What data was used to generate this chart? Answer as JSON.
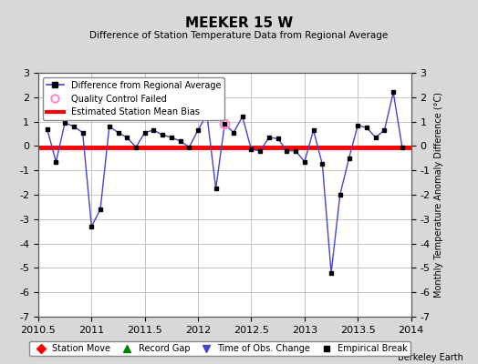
{
  "title": "MEEKER 15 W",
  "subtitle": "Difference of Station Temperature Data from Regional Average",
  "ylabel_right": "Monthly Temperature Anomaly Difference (°C)",
  "xlim": [
    2010.5,
    2014.0
  ],
  "ylim": [
    -7,
    3
  ],
  "yticks": [
    -7,
    -6,
    -5,
    -4,
    -3,
    -2,
    -1,
    0,
    1,
    2,
    3
  ],
  "xticks": [
    2010.5,
    2011.0,
    2011.5,
    2012.0,
    2012.5,
    2013.0,
    2013.5,
    2014.0
  ],
  "xtick_labels": [
    "2010.5",
    "2011",
    "2011.5",
    "2012",
    "2012.5",
    "2013",
    "2013.5",
    "2014"
  ],
  "bias_value": -0.05,
  "background_color": "#d8d8d8",
  "plot_bg_color": "#ffffff",
  "line_color": "#4444cc",
  "dot_color": "#000000",
  "bias_color": "#ff0000",
  "qc_failed_x": 2012.25,
  "qc_failed_y": 0.9,
  "attribution": "Berkeley Earth",
  "data_x": [
    2010.583,
    2010.667,
    2010.75,
    2010.833,
    2010.917,
    2011.0,
    2011.083,
    2011.167,
    2011.25,
    2011.333,
    2011.417,
    2011.5,
    2011.583,
    2011.667,
    2011.75,
    2011.833,
    2011.917,
    2012.0,
    2012.083,
    2012.167,
    2012.25,
    2012.333,
    2012.417,
    2012.5,
    2012.583,
    2012.667,
    2012.75,
    2012.833,
    2012.917,
    2013.0,
    2013.083,
    2013.167,
    2013.25,
    2013.333,
    2013.417,
    2013.5,
    2013.583,
    2013.667,
    2013.75,
    2013.833,
    2013.917
  ],
  "data_y": [
    0.7,
    -0.65,
    0.95,
    0.8,
    0.55,
    -3.3,
    -2.6,
    0.8,
    0.55,
    0.35,
    -0.05,
    0.55,
    0.65,
    0.45,
    0.35,
    0.2,
    -0.05,
    0.65,
    1.3,
    -1.75,
    0.9,
    0.55,
    1.2,
    -0.15,
    -0.2,
    0.35,
    0.3,
    -0.2,
    -0.2,
    -0.65,
    0.65,
    -0.75,
    -5.2,
    -2.0,
    -0.5,
    0.85,
    0.75,
    0.35,
    0.65,
    2.2,
    -0.07
  ]
}
